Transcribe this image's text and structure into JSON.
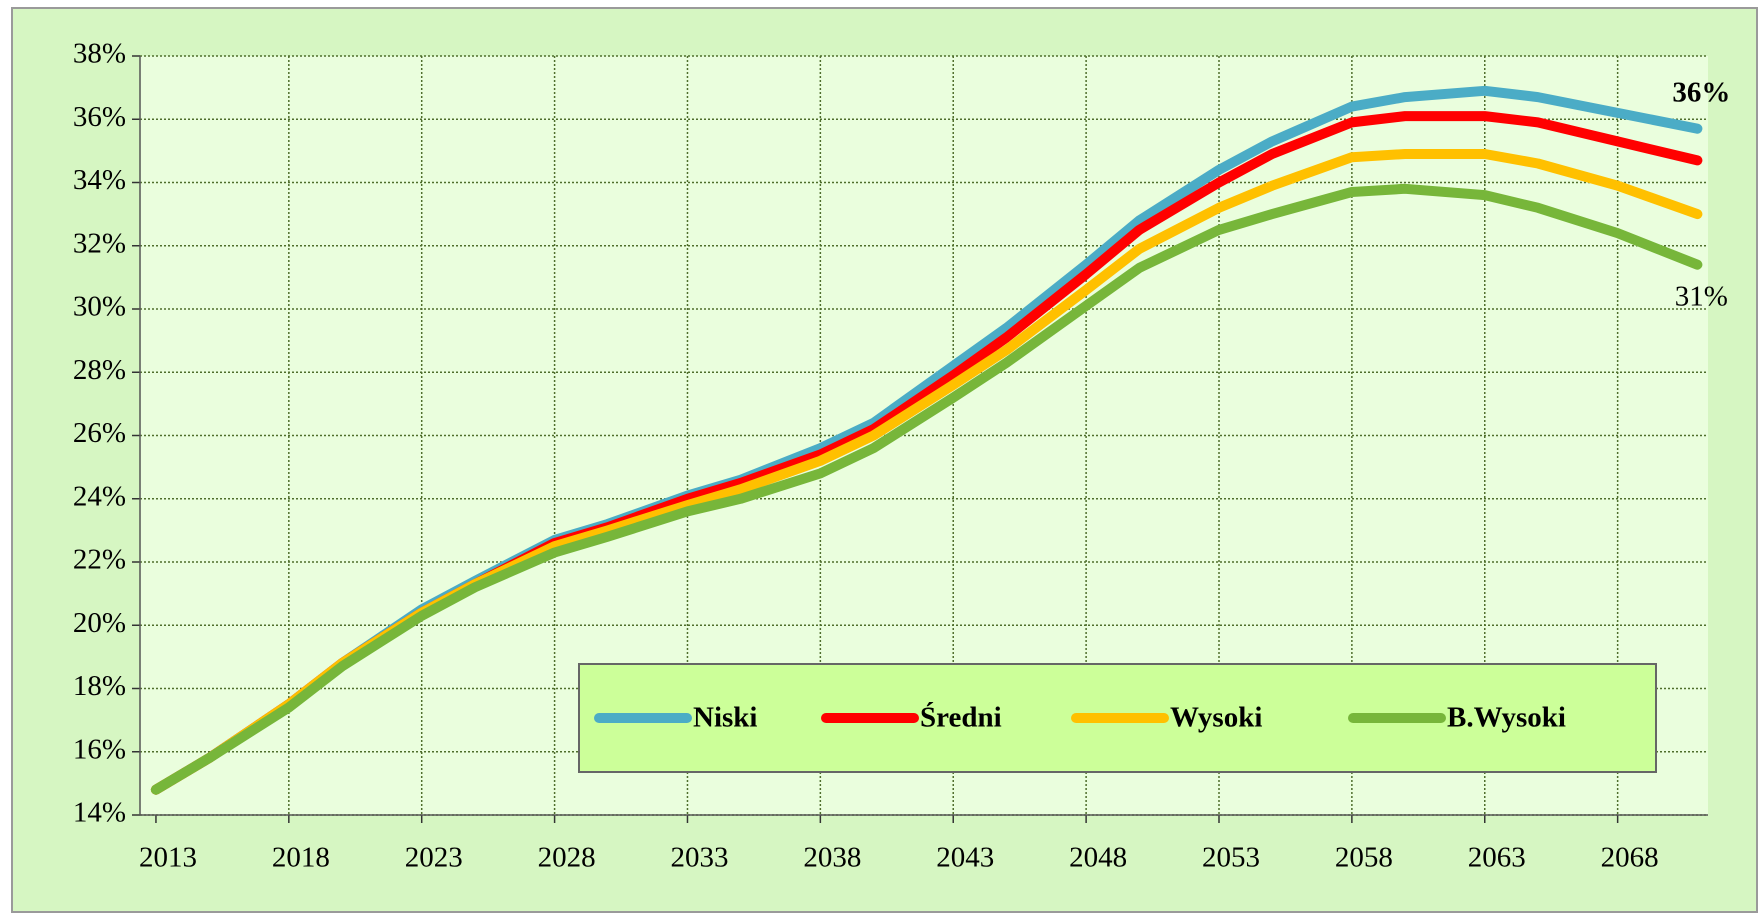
{
  "chart_data": {
    "type": "line",
    "x": [
      2013,
      2015,
      2018,
      2020,
      2023,
      2025,
      2028,
      2030,
      2033,
      2035,
      2038,
      2040,
      2043,
      2045,
      2048,
      2050,
      2053,
      2055,
      2058,
      2060,
      2063,
      2065,
      2068,
      2071
    ],
    "series": [
      {
        "name": "Niski",
        "color": "#4bacc6",
        "values": [
          14.8,
          15.8,
          17.5,
          18.8,
          20.5,
          21.4,
          22.7,
          23.2,
          24.1,
          24.6,
          25.6,
          26.4,
          28.2,
          29.4,
          31.4,
          32.8,
          34.4,
          35.3,
          36.4,
          36.7,
          36.9,
          36.7,
          36.2,
          35.7
        ]
      },
      {
        "name": "Średni",
        "color": "#ff0000",
        "values": [
          14.8,
          15.8,
          17.5,
          18.8,
          20.4,
          21.3,
          22.6,
          23.1,
          24.0,
          24.5,
          25.4,
          26.2,
          27.9,
          29.1,
          31.1,
          32.5,
          34.0,
          34.9,
          35.9,
          36.1,
          36.1,
          35.9,
          35.3,
          34.7
        ]
      },
      {
        "name": "Wysoki",
        "color": "#ffc000",
        "values": [
          14.8,
          15.8,
          17.5,
          18.8,
          20.4,
          21.3,
          22.5,
          23.0,
          23.8,
          24.3,
          25.2,
          26.0,
          27.6,
          28.7,
          30.6,
          31.9,
          33.2,
          33.9,
          34.8,
          34.9,
          34.9,
          34.6,
          33.9,
          33.0
        ]
      },
      {
        "name": "B.Wysoki",
        "color": "#77b63a",
        "values": [
          14.8,
          15.8,
          17.4,
          18.7,
          20.3,
          21.2,
          22.3,
          22.8,
          23.6,
          24.0,
          24.8,
          25.6,
          27.2,
          28.3,
          30.1,
          31.3,
          32.5,
          33.0,
          33.7,
          33.8,
          33.6,
          33.2,
          32.4,
          31.4
        ]
      }
    ],
    "annotations": [
      "36%",
      "31%"
    ],
    "xlim": [
      2012.4,
      2071.4
    ],
    "xticks": [
      2013,
      2018,
      2023,
      2028,
      2033,
      2038,
      2043,
      2048,
      2053,
      2058,
      2063,
      2068
    ],
    "ylim": [
      14,
      38
    ],
    "yticks": [
      {
        "value": 14,
        "label": "14%"
      },
      {
        "value": 16,
        "label": "16%"
      },
      {
        "value": 18,
        "label": "18%"
      },
      {
        "value": 20,
        "label": "20%"
      },
      {
        "value": 22,
        "label": "22%"
      },
      {
        "value": 24,
        "label": "24%"
      },
      {
        "value": 26,
        "label": "26%"
      },
      {
        "value": 28,
        "label": "28%"
      },
      {
        "value": 30,
        "label": "30%"
      },
      {
        "value": 32,
        "label": "32%"
      },
      {
        "value": 34,
        "label": "34%"
      },
      {
        "value": 36,
        "label": "36%"
      },
      {
        "value": 38,
        "label": "38%"
      }
    ],
    "grid": true,
    "legend": "bottom-right"
  }
}
